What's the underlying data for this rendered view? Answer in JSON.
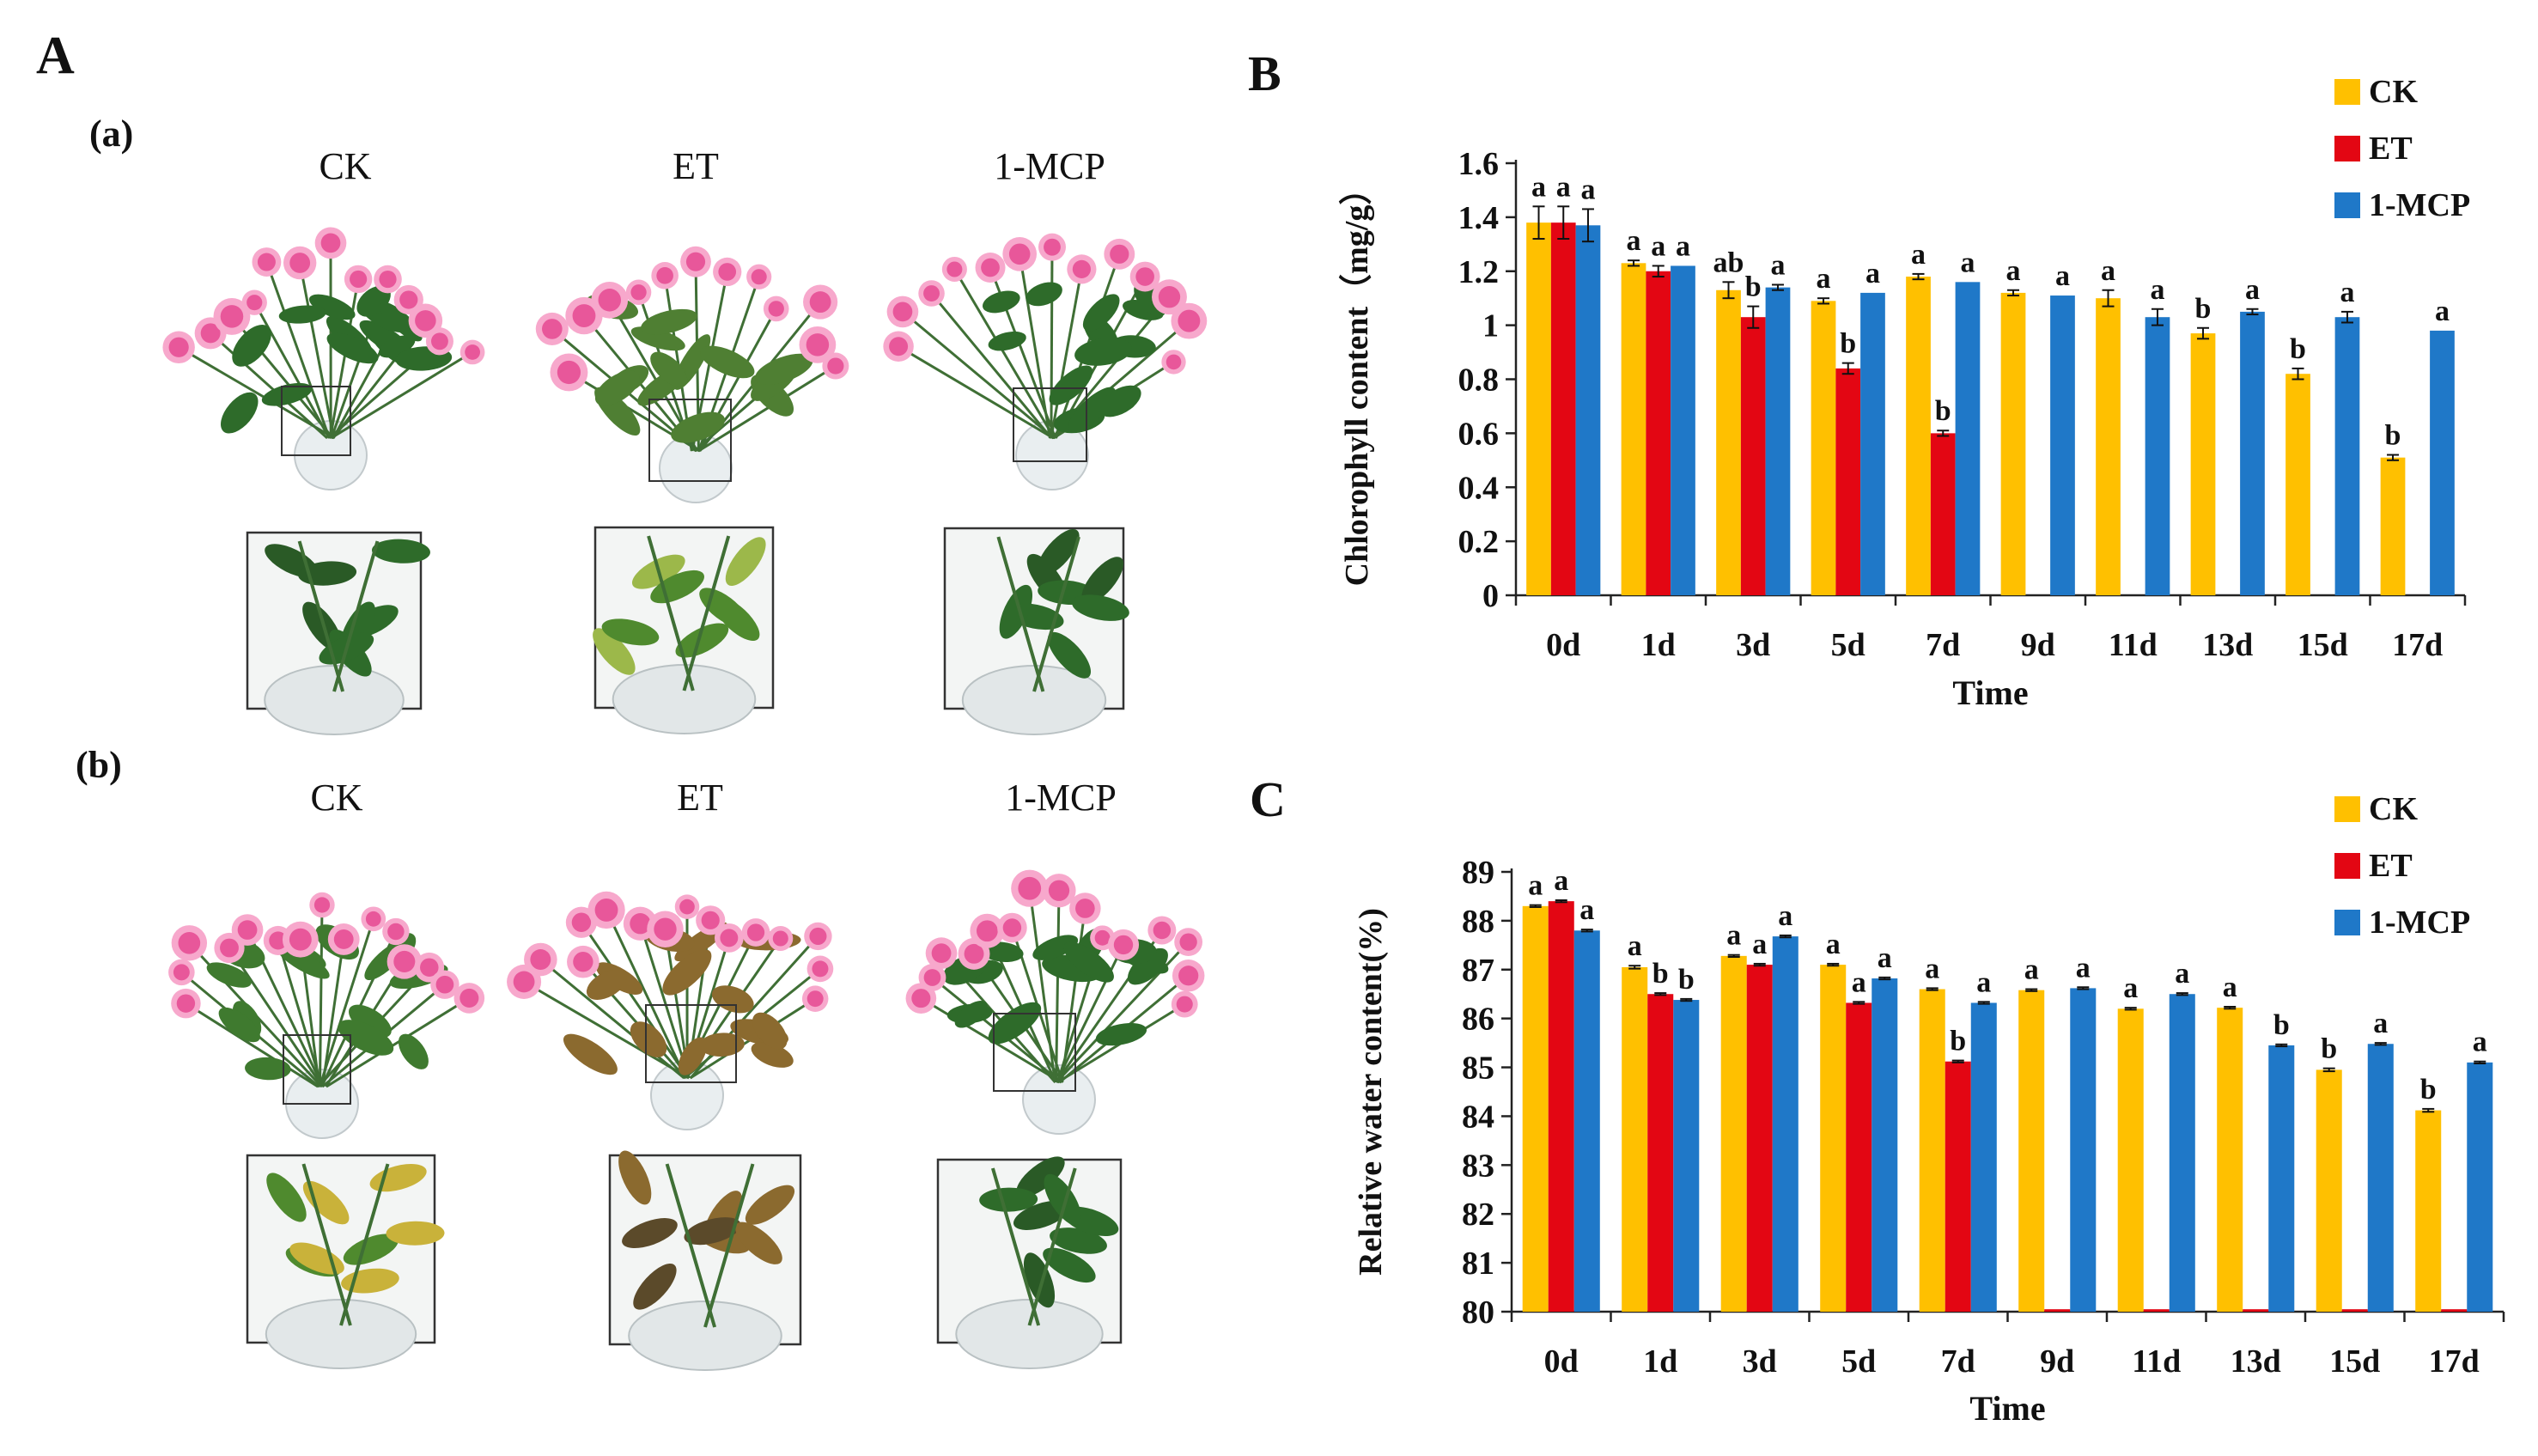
{
  "panel_a": {
    "letter": "A",
    "row_a": {
      "label": "(a)",
      "treatments": [
        "CK",
        "ET",
        "1-MCP"
      ]
    },
    "row_b": {
      "label": "(b)",
      "treatments": [
        "CK",
        "ET",
        "1-MCP"
      ]
    }
  },
  "colors": {
    "CK": "#FFC000",
    "ET": "#E30613",
    "1-MCP": "#1F78C8",
    "petal": "#E8579A",
    "petal_light": "#F7A8CC",
    "leaf_green": "#2E6B2A",
    "leaf_yellow": "#C9B23A",
    "leaf_brown": "#8B6A2F"
  },
  "chart_data": [
    {
      "letter": "B",
      "type": "bar",
      "title": "",
      "xlabel": "Time",
      "ylabel": "Chlorophyll content（mg/g）",
      "ylim": [
        0,
        1.6
      ],
      "yticks": [
        "0",
        "0.2",
        "0.4",
        "0.6",
        "0.8",
        "1",
        "1.2",
        "1.4",
        "1.6"
      ],
      "categories": [
        "0d",
        "1d",
        "3d",
        "5d",
        "7d",
        "9d",
        "11d",
        "13d",
        "15d",
        "17d"
      ],
      "legend": [
        "CK",
        "ET",
        "1-MCP"
      ],
      "series": [
        {
          "name": "CK",
          "values": [
            1.38,
            1.23,
            1.13,
            1.09,
            1.18,
            1.12,
            1.1,
            0.97,
            0.82,
            0.51
          ],
          "errors": [
            0.06,
            0.01,
            0.03,
            0.01,
            0.01,
            0.01,
            0.03,
            0.02,
            0.02,
            0.01
          ],
          "sig": [
            "a",
            "a",
            "ab",
            "a",
            "a",
            "a",
            "a",
            "b",
            "b",
            "b"
          ]
        },
        {
          "name": "ET",
          "values": [
            1.38,
            1.2,
            1.03,
            0.84,
            0.6,
            null,
            null,
            null,
            null,
            null
          ],
          "errors": [
            0.06,
            0.02,
            0.04,
            0.02,
            0.01,
            null,
            null,
            null,
            null,
            null
          ],
          "sig": [
            "a",
            "a",
            "b",
            "b",
            "b",
            "",
            "",
            "",
            "",
            ""
          ]
        },
        {
          "name": "1-MCP",
          "values": [
            1.37,
            1.22,
            1.14,
            1.12,
            1.16,
            1.11,
            1.03,
            1.05,
            1.03,
            0.98
          ],
          "errors": [
            0.06,
            0.0,
            0.01,
            0.0,
            0.0,
            0.0,
            0.03,
            0.01,
            0.02,
            0.0
          ],
          "sig": [
            "a",
            "a",
            "a",
            "a",
            "a",
            "a",
            "a",
            "a",
            "a",
            "a"
          ]
        }
      ]
    },
    {
      "letter": "C",
      "type": "bar",
      "title": "",
      "xlabel": "Time",
      "ylabel": "Relative water content(%)",
      "ylim": [
        80,
        89
      ],
      "yticks": [
        "80",
        "81",
        "82",
        "83",
        "84",
        "85",
        "86",
        "87",
        "88",
        "89"
      ],
      "categories": [
        "0d",
        "1d",
        "3d",
        "5d",
        "7d",
        "9d",
        "11d",
        "13d",
        "15d",
        "17d"
      ],
      "legend": [
        "CK",
        "ET",
        "1-MCP"
      ],
      "series": [
        {
          "name": "CK",
          "values": [
            88.3,
            87.05,
            87.28,
            87.1,
            86.6,
            86.58,
            86.2,
            86.22,
            84.95,
            84.12
          ],
          "errors": [
            0.02,
            0.03,
            0.02,
            0.02,
            0.02,
            0.02,
            0.02,
            0.02,
            0.03,
            0.03
          ],
          "sig": [
            "a",
            "a",
            "a",
            "a",
            "a",
            "a",
            "a",
            "a",
            "b",
            "b"
          ]
        },
        {
          "name": "ET",
          "values": [
            88.4,
            86.5,
            87.1,
            86.32,
            85.12,
            80.05,
            80.05,
            80.05,
            80.05,
            80.05
          ],
          "errors": [
            0.02,
            0.02,
            0.02,
            0.02,
            0.02,
            0,
            0,
            0,
            0,
            0
          ],
          "sig": [
            "a",
            "b",
            "a",
            "a",
            "b",
            "",
            "",
            "",
            "",
            ""
          ]
        },
        {
          "name": "1-MCP",
          "values": [
            87.8,
            86.38,
            87.68,
            86.82,
            86.32,
            86.62,
            86.5,
            85.45,
            85.48,
            85.1
          ],
          "errors": [
            0.02,
            0.02,
            0.02,
            0.02,
            0.02,
            0.02,
            0.02,
            0.02,
            0.02,
            0.02
          ],
          "sig": [
            "a",
            "b",
            "a",
            "a",
            "a",
            "a",
            "a",
            "b",
            "a",
            "a"
          ]
        }
      ]
    }
  ]
}
